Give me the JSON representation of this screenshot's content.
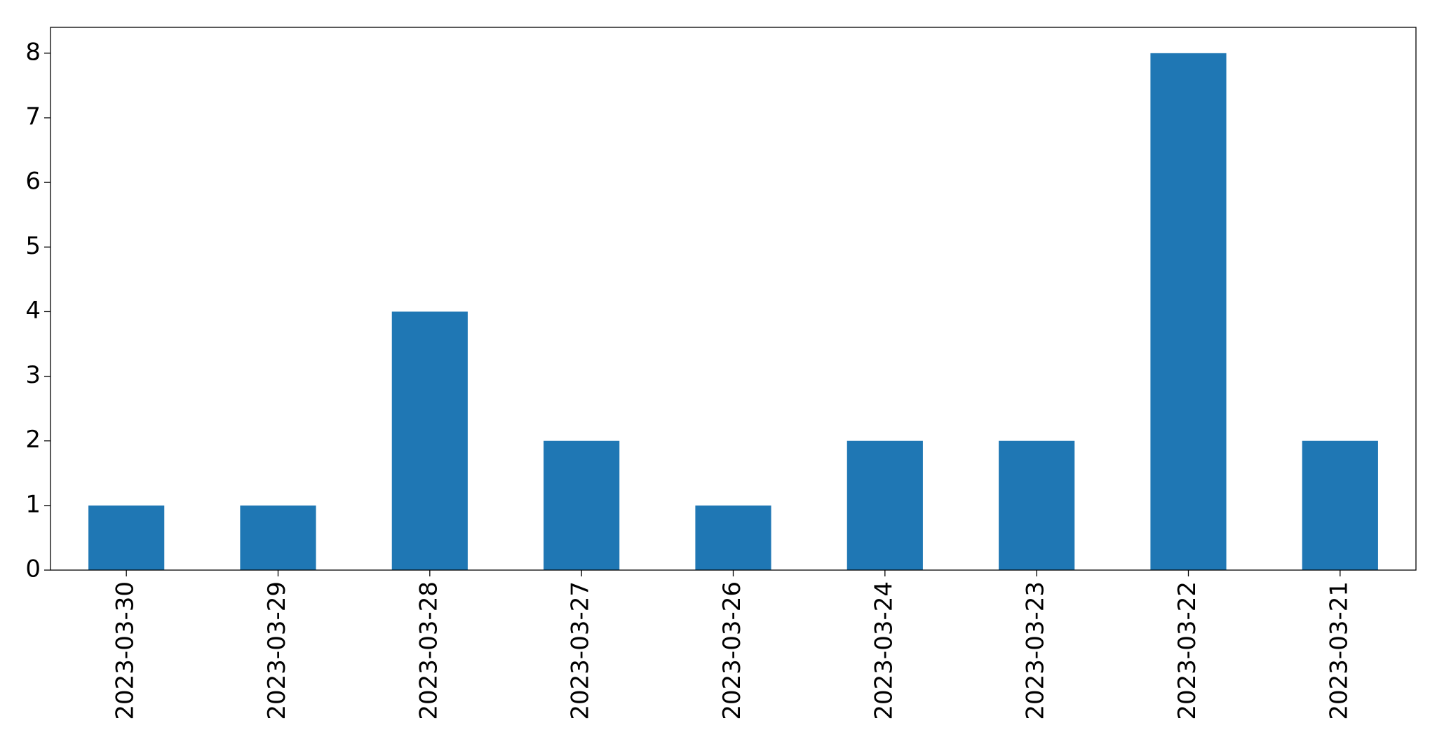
{
  "chart_data": {
    "type": "bar",
    "categories": [
      "2023-03-30",
      "2023-03-29",
      "2023-03-28",
      "2023-03-27",
      "2023-03-26",
      "2023-03-24",
      "2023-03-23",
      "2023-03-22",
      "2023-03-21"
    ],
    "values": [
      1,
      1,
      4,
      2,
      1,
      2,
      2,
      8,
      2
    ],
    "color": "#1f77b4",
    "ylim": [
      0,
      8.4
    ],
    "yticks": [
      0,
      1,
      2,
      3,
      4,
      5,
      6,
      7,
      8
    ],
    "grid": false
  }
}
